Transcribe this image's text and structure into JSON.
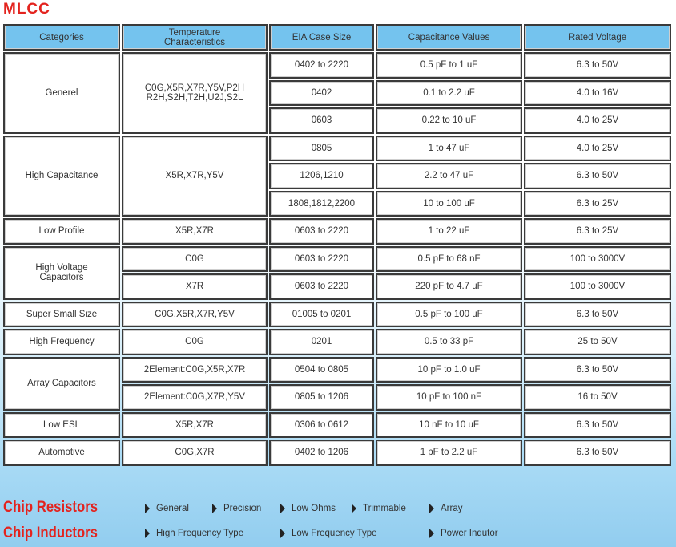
{
  "title": "MLCC",
  "headers": [
    "Categories",
    "Temperature\nCharacteristics",
    "EIA Case Size",
    "Capacitance Values",
    "Rated Voltage"
  ],
  "groups": [
    {
      "category": "Generel",
      "temperature": [
        {
          "text": "C0G,X5R,X7R,Y5V,P2H\nR2H,S2H,T2H,U2J,S2L",
          "rows": [
            [
              "0402 to 2220",
              "0.5 pF to 1 uF",
              "6.3 to 50V"
            ],
            [
              "0402",
              "0.1 to 2.2 uF",
              "4.0 to 16V"
            ],
            [
              "0603",
              "0.22 to 10 uF",
              "4.0 to 25V"
            ]
          ]
        }
      ]
    },
    {
      "category": "High Capacitance",
      "temperature": [
        {
          "text": "X5R,X7R,Y5V",
          "rows": [
            [
              "0805",
              "1 to 47 uF",
              "4.0 to 25V"
            ],
            [
              "1206,1210",
              "2.2 to 47 uF",
              "6.3 to 50V"
            ],
            [
              "1808,1812,2200",
              "10 to 100 uF",
              "6.3 to 25V"
            ]
          ]
        }
      ]
    },
    {
      "category": "Low Profile",
      "temperature": [
        {
          "text": "X5R,X7R",
          "rows": [
            [
              "0603 to 2220",
              "1 to 22 uF",
              "6.3 to 25V"
            ]
          ]
        }
      ]
    },
    {
      "category": "High Voltage\nCapacitors",
      "temperature": [
        {
          "text": "C0G",
          "rows": [
            [
              "0603 to 2220",
              "0.5 pF to 68 nF",
              "100 to 3000V"
            ]
          ]
        },
        {
          "text": "X7R",
          "rows": [
            [
              "0603 to 2220",
              "220 pF to 4.7 uF",
              "100 to 3000V"
            ]
          ]
        }
      ]
    },
    {
      "category": "Super Small Size",
      "temperature": [
        {
          "text": "C0G,X5R,X7R,Y5V",
          "rows": [
            [
              "01005 to 0201",
              "0.5 pF to 100 uF",
              "6.3 to 50V"
            ]
          ]
        }
      ]
    },
    {
      "category": "High Frequency",
      "temperature": [
        {
          "text": "C0G",
          "rows": [
            [
              "0201",
              "0.5 to 33 pF",
              "25 to 50V"
            ]
          ]
        }
      ]
    },
    {
      "category": "Array Capacitors",
      "temperature": [
        {
          "text": "2Element:C0G,X5R,X7R",
          "rows": [
            [
              "0504 to 0805",
              "10 pF to 1.0 uF",
              "6.3 to 50V"
            ]
          ]
        },
        {
          "text": "2Element:C0G,X7R,Y5V",
          "rows": [
            [
              "0805 to 1206",
              "10 pF to 100 nF",
              "16 to 50V"
            ]
          ]
        }
      ]
    },
    {
      "category": "Low ESL",
      "temperature": [
        {
          "text": "X5R,X7R",
          "rows": [
            [
              "0306 to 0612",
              "10 nF to 10 uF",
              "6.3 to 50V"
            ]
          ]
        }
      ]
    },
    {
      "category": "Automotive",
      "temperature": [
        {
          "text": "C0G,X7R",
          "rows": [
            [
              "0402 to 1206",
              "1 pF to 2.2 uF",
              "6.3 to 50V"
            ]
          ]
        }
      ]
    }
  ],
  "footer": {
    "resistors": {
      "label": "Chip Resistors",
      "links": [
        "General",
        "Precision",
        "Low Ohms",
        "Trimmable",
        "Array"
      ]
    },
    "inductors": {
      "label": "Chip Inductors",
      "links": [
        "High Frequency Type",
        "Low Frequency Type",
        "Power Indutor"
      ]
    }
  },
  "colors": {
    "accent": "#e3231e",
    "header": "#74c3ee"
  }
}
